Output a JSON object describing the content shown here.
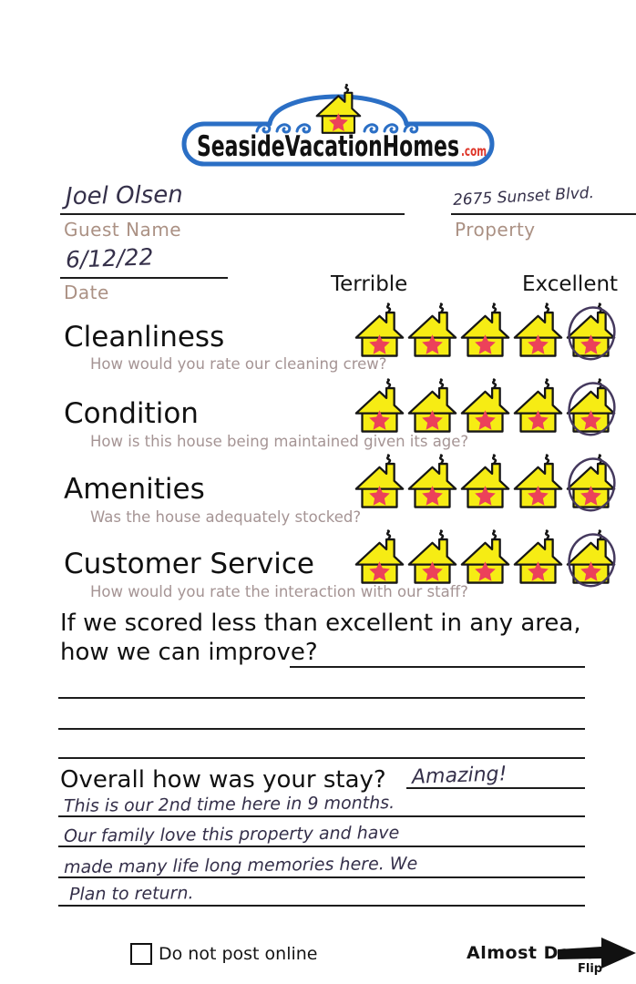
{
  "logo": {
    "brand": "SeasideVacationHomes",
    "tld": ".com",
    "icon": "house-with-star-and-smoke",
    "colors": {
      "outline_blue": "#2b6fc5",
      "tld_red": "#de3428",
      "house_yellow": "#f6ec14",
      "star_pink": "#ec415a"
    }
  },
  "fields": {
    "guest_name": {
      "label": "Guest Name",
      "value": "Joel Olsen"
    },
    "property": {
      "label": "Property",
      "value": "2675 Sunset Blvd."
    },
    "date": {
      "label": "Date",
      "value": "6/12/22"
    }
  },
  "scale": {
    "left": "Terrible",
    "right": "Excellent"
  },
  "ratings": [
    {
      "label": "Cleanliness",
      "question": "How would you rate our cleaning crew?",
      "max": 5,
      "selected": 5,
      "mark": "circled",
      "selected_label": "Excellent"
    },
    {
      "label": "Condition",
      "question": "How is this house being maintained given its age?",
      "max": 5,
      "selected": 5,
      "mark": "circled",
      "selected_label": "Excellent"
    },
    {
      "label": "Amenities",
      "question": "Was the house adequately stocked?",
      "max": 5,
      "selected": 5,
      "mark": "circled",
      "selected_label": "Excellent"
    },
    {
      "label": "Customer Service",
      "question": "How would you rate the interaction with our staff?",
      "max": 5,
      "selected": 5,
      "mark": "circled",
      "selected_label": "Excellent"
    }
  ],
  "improve": {
    "prompt_line1": "If we scored less than excellent in any area,",
    "prompt_line2": "how we can improve?",
    "response": ""
  },
  "overall": {
    "prompt": "Overall how was your stay?",
    "answer": "Amazing!",
    "comments": [
      "This is our 2nd time here in 9 months.",
      "Our family love this property and have",
      "made many life long memories here. We",
      "Plan to return."
    ]
  },
  "footer": {
    "checkbox_label": "Do not post online",
    "checked": false,
    "almost_done": "Almost Done",
    "flip": "Flip",
    "arrow_icon": "right-arrow"
  },
  "ink": {
    "annotation_color": "#45395e",
    "handwriting_color": "#35304a"
  }
}
